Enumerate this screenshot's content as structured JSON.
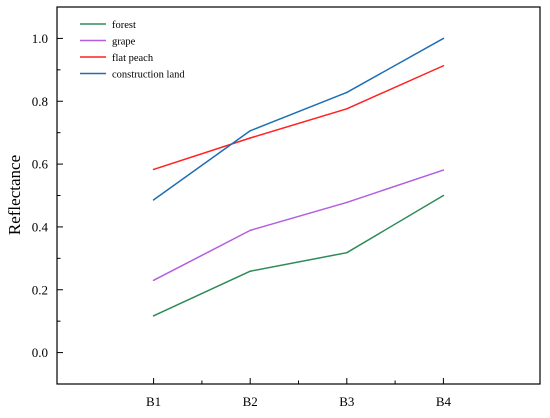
{
  "chart_data": {
    "type": "line",
    "title": "",
    "xlabel": "",
    "ylabel": "Reflectance",
    "categories": [
      "B1",
      "B2",
      "B3",
      "B4"
    ],
    "ylim": [
      -0.1,
      1.1
    ],
    "yticks": [
      "0.0",
      "0.2",
      "0.4",
      "0.6",
      "0.8",
      "1.0"
    ],
    "grid": false,
    "legend_position": "top-left",
    "series": [
      {
        "name": "forest",
        "color": "#2e8b57",
        "values": [
          0.117,
          0.259,
          0.318,
          0.5
        ]
      },
      {
        "name": "grape",
        "color": "#b45ee0",
        "values": [
          0.23,
          0.389,
          0.478,
          0.581
        ]
      },
      {
        "name": "flat peach",
        "color": "#ff2020",
        "values": [
          0.583,
          0.683,
          0.776,
          0.913
        ]
      },
      {
        "name": "construction land",
        "color": "#1e6fb5",
        "values": [
          0.486,
          0.706,
          0.828,
          1.0
        ]
      }
    ]
  }
}
